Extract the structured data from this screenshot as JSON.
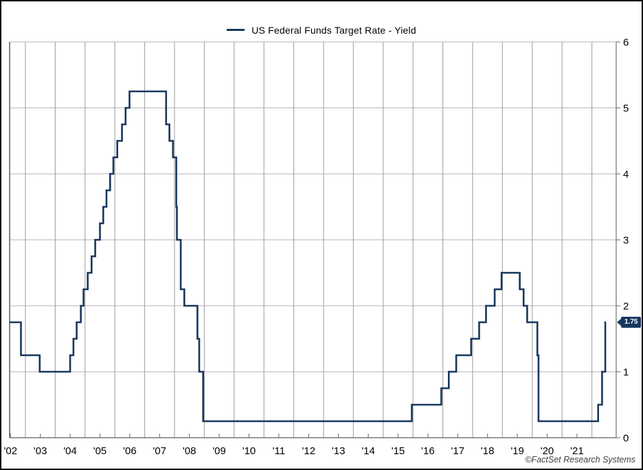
{
  "legend": {
    "label": "US Federal Funds Target Rate - Yield"
  },
  "value_badge": {
    "text": "1.75"
  },
  "attribution": {
    "text": "©FactSet Research Systems"
  },
  "colors": {
    "line": "#17375e",
    "badge_bg": "#17375e",
    "badge_text": "#ffffff",
    "grid_vertical": "#a3a3a3",
    "grid_horizontal": "#c2c2c2",
    "axis": "#737373",
    "plot_left_border": "#4d4d4d",
    "outer_border": "#000000",
    "attribution_text": "#3f3f3f"
  },
  "chart_data": {
    "type": "line",
    "step": true,
    "title": "US Federal Funds Target Rate - Yield",
    "series_name": "US Federal Funds Target Rate - Yield",
    "xlabel": "",
    "ylabel": "",
    "x_tick_labels": [
      "'02",
      "'03",
      "'04",
      "'05",
      "'06",
      "'07",
      "'08",
      "'09",
      "'10",
      "'11",
      "'12",
      "'13",
      "'14",
      "'15",
      "'16",
      "'17",
      "'18",
      "'19",
      "'20",
      "'21"
    ],
    "x_tick_years": [
      2002,
      2003,
      2004,
      2005,
      2006,
      2007,
      2008,
      2009,
      2010,
      2011,
      2012,
      2013,
      2014,
      2015,
      2016,
      2017,
      2018,
      2019,
      2020,
      2021
    ],
    "y_tick_labels": [
      "0",
      "1",
      "2",
      "3",
      "4",
      "5",
      "6"
    ],
    "y_ticks": [
      0,
      1,
      2,
      3,
      4,
      5,
      6
    ],
    "x_range": [
      2002.47,
      2022.8
    ],
    "y_range": [
      0,
      6
    ],
    "grid": true,
    "legend_position": "top-center",
    "y_axis_side": "right",
    "last_value": 1.75,
    "x_end": 2022.47,
    "points": [
      [
        2002.47,
        1.75
      ],
      [
        2002.85,
        1.25
      ],
      [
        2003.48,
        1.0
      ],
      [
        2004.5,
        1.25
      ],
      [
        2004.61,
        1.5
      ],
      [
        2004.72,
        1.75
      ],
      [
        2004.86,
        2.0
      ],
      [
        2004.95,
        2.25
      ],
      [
        2005.09,
        2.5
      ],
      [
        2005.22,
        2.75
      ],
      [
        2005.34,
        3.0
      ],
      [
        2005.5,
        3.25
      ],
      [
        2005.61,
        3.5
      ],
      [
        2005.72,
        3.75
      ],
      [
        2005.84,
        4.0
      ],
      [
        2005.95,
        4.25
      ],
      [
        2006.08,
        4.5
      ],
      [
        2006.24,
        4.75
      ],
      [
        2006.36,
        5.0
      ],
      [
        2006.49,
        5.25
      ],
      [
        2007.72,
        4.75
      ],
      [
        2007.83,
        4.5
      ],
      [
        2007.95,
        4.25
      ],
      [
        2008.06,
        3.5
      ],
      [
        2008.08,
        3.0
      ],
      [
        2008.21,
        2.25
      ],
      [
        2008.33,
        2.0
      ],
      [
        2008.77,
        1.5
      ],
      [
        2008.83,
        1.0
      ],
      [
        2008.96,
        0.25
      ],
      [
        2015.96,
        0.5
      ],
      [
        2016.95,
        0.75
      ],
      [
        2017.2,
        1.0
      ],
      [
        2017.45,
        1.25
      ],
      [
        2017.95,
        1.5
      ],
      [
        2018.22,
        1.75
      ],
      [
        2018.45,
        2.0
      ],
      [
        2018.74,
        2.25
      ],
      [
        2018.97,
        2.5
      ],
      [
        2019.58,
        2.25
      ],
      [
        2019.71,
        2.0
      ],
      [
        2019.83,
        1.75
      ],
      [
        2020.17,
        1.25
      ],
      [
        2020.21,
        0.25
      ],
      [
        2022.21,
        0.5
      ],
      [
        2022.34,
        1.0
      ],
      [
        2022.45,
        1.75
      ]
    ]
  }
}
